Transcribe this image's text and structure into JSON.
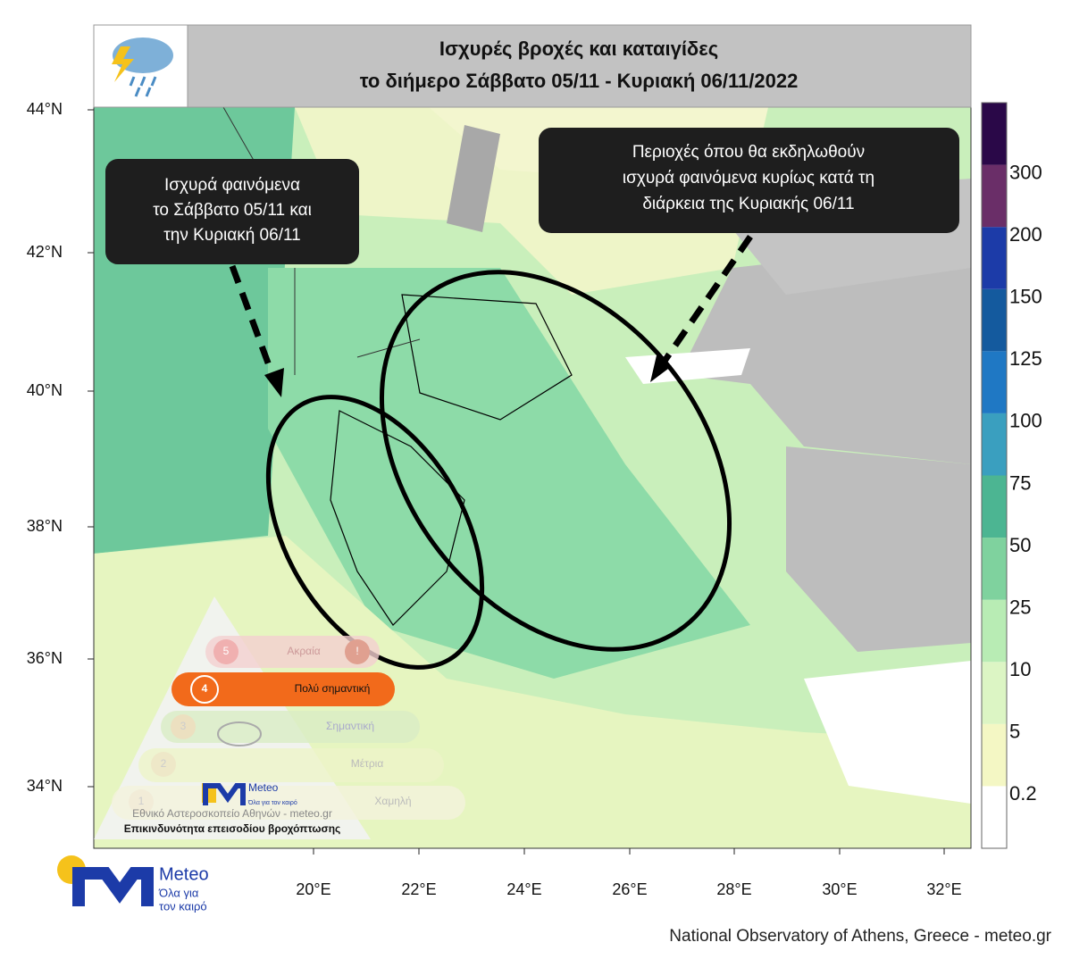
{
  "header": {
    "title": [
      "Ισχυρές βροχές και καταιγίδες",
      "το διήμερο Σάββατο 05/11 - Κυριακή 06/11/2022"
    ]
  },
  "callouts": [
    {
      "lines": [
        "Ισχυρά φαινόμενα",
        "το Σάββατο 05/11 και",
        "την Κυριακή 06/11"
      ]
    },
    {
      "lines": [
        "Περιοχές όπου θα εκδηλωθούν",
        "ισχυρά φαινόμενα κυρίως κατά τη",
        "διάρκεια της Κυριακής 06/11"
      ]
    }
  ],
  "axes": {
    "latitudes": [
      "44°N",
      "42°N",
      "40°N",
      "38°N",
      "36°N",
      "34°N"
    ],
    "longitudes": [
      "20°E",
      "22°E",
      "24°E",
      "26°E",
      "28°E",
      "30°E",
      "32°E"
    ]
  },
  "colorbar": {
    "levels": [
      0.2,
      5,
      10,
      25,
      50,
      75,
      100,
      125,
      150,
      200,
      300
    ],
    "colors": [
      "#ffffff",
      "#f4f7c4",
      "#dcf5c4",
      "#b8ecb4",
      "#7fd29e",
      "#4cb592",
      "#3a9fbf",
      "#1f78c4",
      "#145a9e",
      "#1c3ba8",
      "#6a2e68",
      "#2a0848"
    ]
  },
  "warning_scale": {
    "levels": [
      {
        "number": "5",
        "label": "Ακραία",
        "icon": "!"
      },
      {
        "number": "4",
        "label": "Πολύ σημαντική"
      },
      {
        "number": "3",
        "label": "Σημαντική"
      },
      {
        "number": "2",
        "label": "Μέτρια"
      },
      {
        "number": "1",
        "label": "Χαμηλή"
      }
    ],
    "brand": "Meteo",
    "tagline": "Όλα για τον καιρό",
    "institute": "Εθνικό Αστεροσκοπείο Αθηνών - meteo.gr",
    "caption": "Επικινδυνότητα επεισοδίου βροχόπτωσης"
  },
  "logo": {
    "brand": "Meteo",
    "tagline": [
      "Όλα για",
      "τον καιρό"
    ]
  },
  "footer": "National Observatory of Athens, Greece - meteo.gr"
}
